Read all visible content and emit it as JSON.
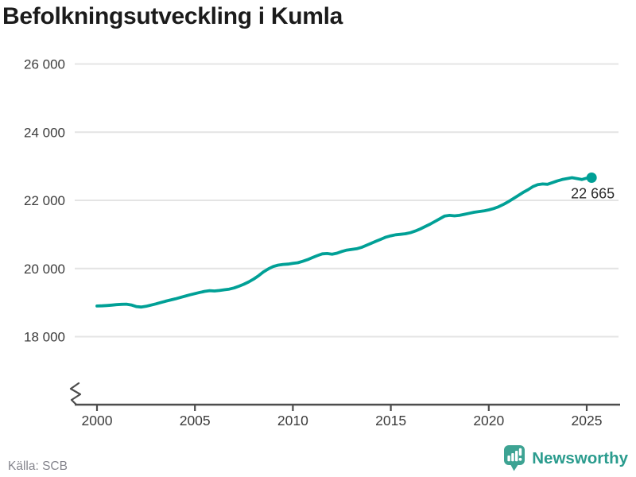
{
  "header": {
    "title": "Befolkningsutveckling i Kumla"
  },
  "footer": {
    "source": "Källa: SCB",
    "brand": "Newsworthy",
    "brand_icon": "newsworthy-bar-chart-bubble-icon"
  },
  "colors": {
    "accent": "#00a096",
    "grid": "#e4e4e4",
    "axis": "#4d4d4d",
    "tick_text": "#3c3c3c",
    "title_text": "#1b1b1b",
    "value_label": "#2b2b2b",
    "muted": "#85858d",
    "brand": "#2b9c8e",
    "brand_icon": "#3da393"
  },
  "chart_data": {
    "type": "line",
    "title": "Befolkningsutveckling i Kumla",
    "source": "Källa: SCB",
    "xlabel": "",
    "ylabel": "",
    "grid": "horizontal-only",
    "legend": "none",
    "axis_break_at_bottom": true,
    "x_ticks": {
      "values": [
        2000,
        2005,
        2010,
        2015,
        2020,
        2025
      ],
      "labels": [
        "2000",
        "2005",
        "2010",
        "2015",
        "2020",
        "2025"
      ]
    },
    "y_ticks": {
      "values": [
        26000,
        24000,
        22000,
        20000,
        18000
      ],
      "labels": [
        "26 000",
        "24 000",
        "22 000",
        "20 000",
        "18 000"
      ]
    },
    "xlim": [
      1998.8,
      2026.7
    ],
    "ylim_shown": [
      18000,
      26000
    ],
    "end_label": "22 665",
    "last_value": 22665,
    "series": [
      {
        "name": "Kumla",
        "x_start": 2000.0,
        "x_step_years": 0.25,
        "values": [
          18900,
          18905,
          18915,
          18925,
          18940,
          18950,
          18955,
          18930,
          18885,
          18870,
          18890,
          18925,
          18960,
          19000,
          19040,
          19075,
          19110,
          19150,
          19190,
          19230,
          19265,
          19300,
          19330,
          19350,
          19340,
          19355,
          19375,
          19395,
          19430,
          19480,
          19540,
          19610,
          19690,
          19790,
          19900,
          19990,
          20060,
          20100,
          20120,
          20130,
          20150,
          20170,
          20210,
          20260,
          20320,
          20380,
          20430,
          20440,
          20420,
          20450,
          20500,
          20540,
          20560,
          20580,
          20620,
          20680,
          20740,
          20800,
          20860,
          20920,
          20960,
          20990,
          21005,
          21020,
          21050,
          21100,
          21160,
          21230,
          21300,
          21380,
          21460,
          21540,
          21560,
          21545,
          21560,
          21590,
          21620,
          21650,
          21670,
          21690,
          21720,
          21760,
          21810,
          21880,
          21960,
          22050,
          22140,
          22230,
          22310,
          22400,
          22460,
          22480,
          22470,
          22520,
          22570,
          22610,
          22640,
          22665,
          22640,
          22610,
          22650,
          22665
        ]
      }
    ]
  }
}
